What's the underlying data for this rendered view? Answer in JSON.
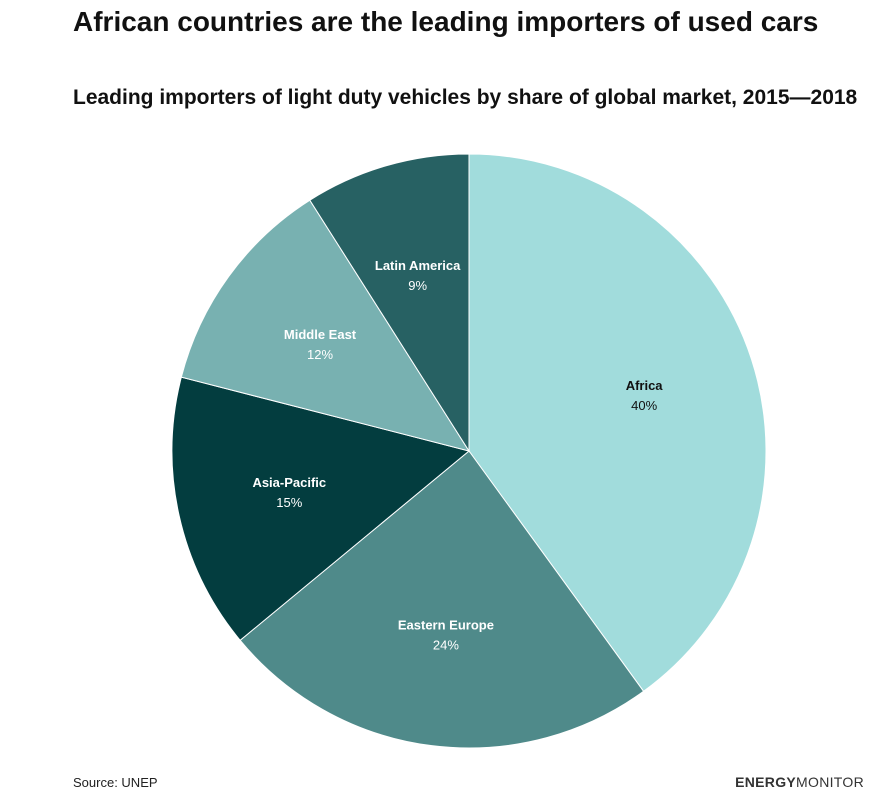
{
  "header": {
    "title": "African countries are the leading importers of used cars",
    "subtitle": "Leading importers of light duty vehicles by share of global market, 2015—2018"
  },
  "footer": {
    "source": "Source: UNEP",
    "logo_part1": "ENERGY",
    "logo_part2": "MONITOR"
  },
  "chart_data": {
    "type": "pie",
    "title": "African countries are the leading importers of used cars",
    "subtitle": "Leading importers of light duty vehicles by share of global market, 2015—2018",
    "unit": "%",
    "slices": [
      {
        "label": "Africa",
        "value": 40,
        "display": "40%",
        "color": "#a1dcdc",
        "text_color": "#111111"
      },
      {
        "label": "Eastern Europe",
        "value": 24,
        "display": "24%",
        "color": "#4f8a8a",
        "text_color": "#ffffff"
      },
      {
        "label": "Asia-Pacific",
        "value": 15,
        "display": "15%",
        "color": "#033d3f",
        "text_color": "#ffffff"
      },
      {
        "label": "Middle East",
        "value": 12,
        "display": "12%",
        "color": "#78b1b1",
        "text_color": "#ffffff"
      },
      {
        "label": "Latin America",
        "value": 9,
        "display": "9%",
        "color": "#276163",
        "text_color": "#ffffff"
      }
    ],
    "start_angle": "12 o'clock",
    "direction": "clockwise",
    "legend": "none (labels on slices)"
  }
}
